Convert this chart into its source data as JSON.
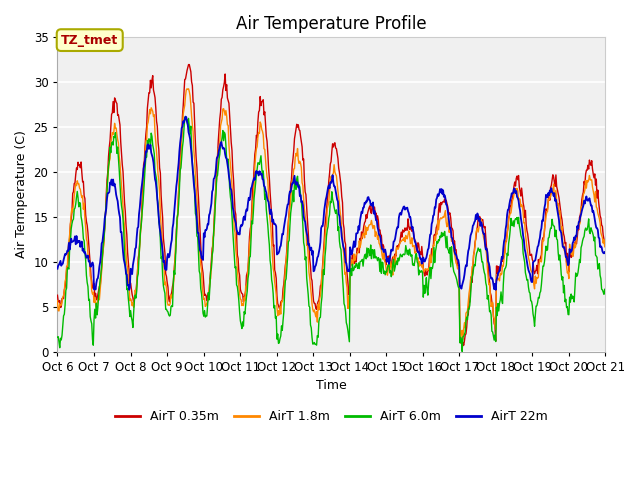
{
  "title": "Air Temperature Profile",
  "ylabel": "Air Termperature (C)",
  "xlabel": "Time",
  "ylim": [
    0,
    35
  ],
  "yticks": [
    0,
    5,
    10,
    15,
    20,
    25,
    30,
    35
  ],
  "xtick_labels": [
    "Oct 6",
    "Oct 7",
    "Oct 8",
    "Oct 9",
    "Oct 10",
    "Oct 11",
    "Oct 12",
    "Oct 13",
    "Oct 14",
    "Oct 15",
    "Oct 16",
    "Oct 17",
    "Oct 18",
    "Oct 19",
    "Oct 20",
    "Oct 21"
  ],
  "colors": {
    "AirT 0.35m": "#cc0000",
    "AirT 1.8m": "#ff8800",
    "AirT 6.0m": "#00bb00",
    "AirT 22m": "#0000cc"
  },
  "legend_labels": [
    "AirT 0.35m",
    "AirT 1.8m",
    "AirT 6.0m",
    "AirT 22m"
  ],
  "annotation_text": "TZ_tmet",
  "annotation_color": "#aa0000",
  "annotation_bg": "#ffffcc",
  "plot_bg": "#f0f0f0",
  "grid_color": "#ffffff",
  "title_fontsize": 12,
  "axis_label_fontsize": 9,
  "tick_fontsize": 8.5,
  "legend_fontsize": 9
}
